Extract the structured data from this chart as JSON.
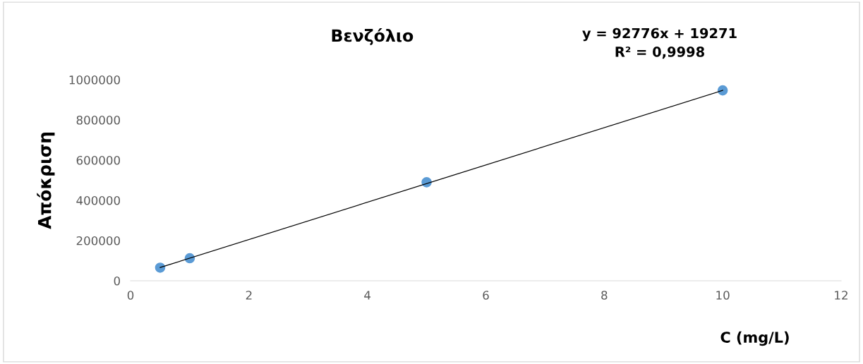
{
  "chart_data": {
    "type": "scatter",
    "title": "Βενζόλιο",
    "xlabel": "C (mg/L)",
    "ylabel": "Απόκριση",
    "x": [
      0.5,
      1,
      5,
      10
    ],
    "series": [
      {
        "color": "#5b9bd5",
        "marker": "circle",
        "values": [
          65000,
          112000,
          490000,
          947000
        ]
      },
      {
        "type": "line",
        "color": "#000000",
        "x": [
          0.5,
          10
        ],
        "values": [
          66000,
          947000
        ]
      }
    ],
    "annotations": [
      "y = 92776x + 19271\nR² = 0,9998"
    ],
    "xlim": [
      0,
      12
    ],
    "xticks": [
      0,
      2,
      4,
      6,
      8,
      10,
      12
    ],
    "ylim": [
      0,
      1000000
    ],
    "yticks": [
      0,
      200000,
      400000,
      600000,
      800000,
      1000000
    ],
    "grid": false,
    "legend": false
  }
}
